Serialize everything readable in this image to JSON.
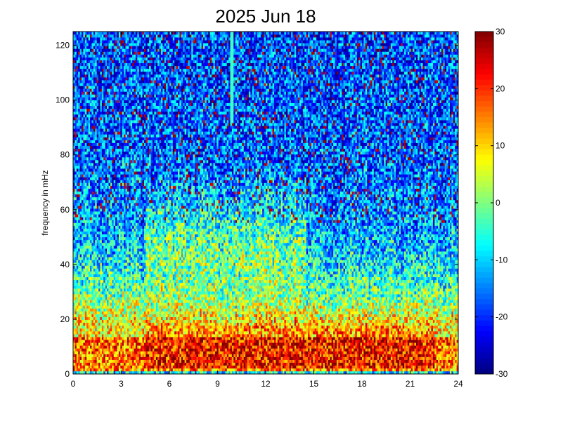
{
  "chart_data": {
    "type": "heatmap",
    "title": "2025 Jun 18",
    "xlabel": "",
    "ylabel": "frequency in mHz",
    "xlim": [
      0,
      24
    ],
    "ylim": [
      0,
      125
    ],
    "x_ticks": [
      "0",
      "3",
      "6",
      "9",
      "12",
      "15",
      "18",
      "21",
      "24"
    ],
    "y_ticks": [
      "0",
      "20",
      "40",
      "60",
      "80",
      "100",
      "120"
    ],
    "colorbar": {
      "range": [
        -30,
        30
      ],
      "ticks": [
        "30",
        "20",
        "10",
        "0",
        "-10",
        "-20",
        "-30"
      ],
      "colormap": "jet"
    },
    "grid": false,
    "columns": 228,
    "rows": 120,
    "features": {
      "low_frequency_band_mHz": [
        2,
        18
      ],
      "low_frequency_band_value": 22,
      "background_value_high_freq": -18,
      "noise_amplitude": 12,
      "daytime_enhancement_hours": [
        4.5,
        14.5
      ],
      "vertical_line_hour": 9.9
    }
  }
}
